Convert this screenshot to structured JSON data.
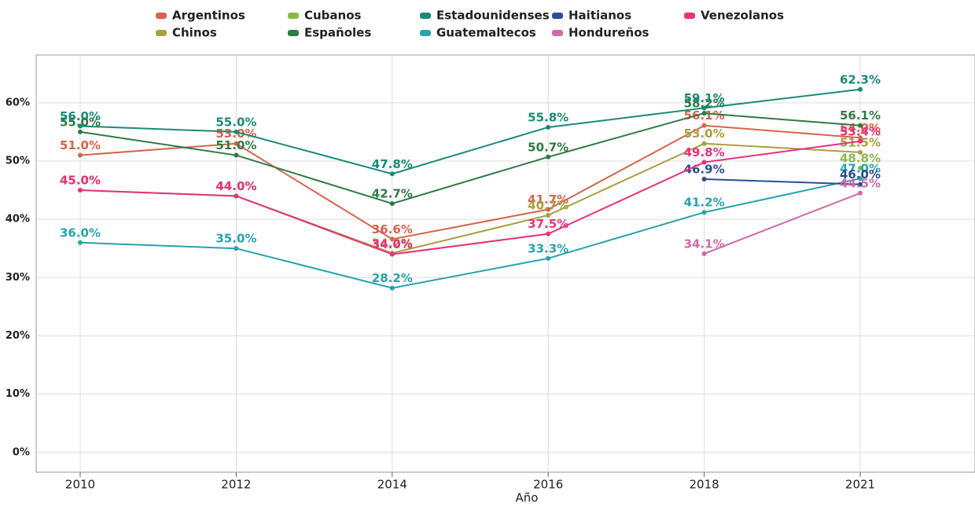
{
  "chart_data": {
    "type": "line",
    "x_label": "Año",
    "categories": [
      "2010",
      "2012",
      "2014",
      "2016",
      "2018",
      "2021"
    ],
    "ylim": [
      -3.4,
      68.2
    ],
    "yticks": [
      {
        "value": 0,
        "label": "0%"
      },
      {
        "value": 10,
        "label": "10%"
      },
      {
        "value": 20,
        "label": "20%"
      },
      {
        "value": 30,
        "label": "30%"
      },
      {
        "value": 40,
        "label": "40%"
      },
      {
        "value": 50,
        "label": "50%"
      },
      {
        "value": 60,
        "label": "60%"
      }
    ],
    "grid": true,
    "legend": "top",
    "series": [
      {
        "name": "Argentinos",
        "color": "#d9634c",
        "values": [
          51.0,
          53.0,
          36.6,
          41.7,
          56.1,
          54.0
        ],
        "value_labels": [
          "51.0%",
          "53.0%",
          "36.6%",
          "41.7%",
          "56.1%",
          "54.0%"
        ]
      },
      {
        "name": "Chinos",
        "color": "#a8a040",
        "values": [
          45.0,
          44.0,
          34.2,
          40.7,
          53.0,
          51.5
        ],
        "value_labels": [
          "45.0%",
          "44.0%",
          "34.2%",
          "40.7%",
          "53.0%",
          "51.5%"
        ]
      },
      {
        "name": "Cubanos",
        "color": "#8ab84a",
        "values": [
          null,
          null,
          null,
          null,
          null,
          48.8
        ],
        "value_labels": [
          null,
          null,
          null,
          null,
          null,
          "48.8%"
        ]
      },
      {
        "name": "Españoles",
        "color": "#2f7a45",
        "values": [
          55.0,
          51.0,
          42.7,
          50.7,
          58.2,
          56.1
        ],
        "value_labels": [
          "55.0%",
          "51.0%",
          "42.7%",
          "50.7%",
          "58.2%",
          "56.1%"
        ]
      },
      {
        "name": "Estadounidenses",
        "color": "#1a8a78",
        "values": [
          56.0,
          55.0,
          47.8,
          55.8,
          59.1,
          62.3
        ],
        "value_labels": [
          "56.0%",
          "55.0%",
          "47.8%",
          "55.8%",
          "59.1%",
          "62.3%"
        ]
      },
      {
        "name": "Guatemaltecos",
        "color": "#26a3ad",
        "values": [
          36.0,
          35.0,
          28.2,
          33.3,
          41.2,
          47.0
        ],
        "value_labels": [
          "36.0%",
          "35.0%",
          "28.2%",
          "33.3%",
          "41.2%",
          "47.0%"
        ]
      },
      {
        "name": "Haitianos",
        "color": "#2a4f8f",
        "values": [
          null,
          null,
          null,
          null,
          46.9,
          46.0
        ],
        "value_labels": [
          null,
          null,
          null,
          null,
          "46.9%",
          "46.0%"
        ]
      },
      {
        "name": "Hondureños",
        "color": "#d06aa8",
        "values": [
          null,
          null,
          null,
          null,
          34.1,
          44.5
        ],
        "value_labels": [
          null,
          null,
          null,
          null,
          "34.1%",
          "44.5%"
        ]
      },
      {
        "name": "Venezolanos",
        "color": "#e8327c",
        "values": [
          45.0,
          44.0,
          34.0,
          37.5,
          49.8,
          53.4
        ],
        "value_labels": [
          "45.0%",
          "44.0%",
          "34.0%",
          "37.5%",
          "49.8%",
          "53.4%"
        ]
      }
    ]
  }
}
